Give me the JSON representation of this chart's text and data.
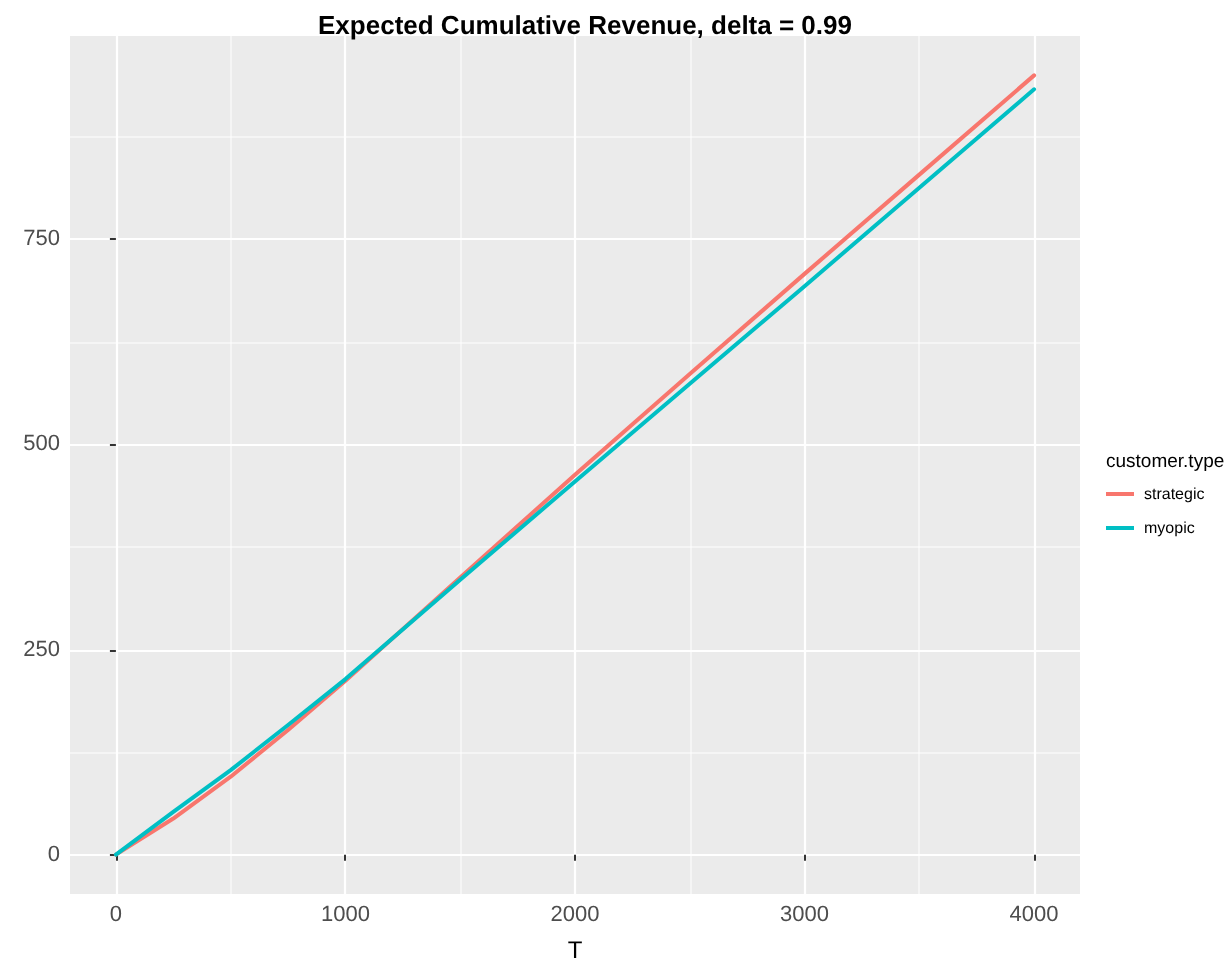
{
  "chart_data": {
    "type": "line",
    "title": "Expected Cumulative Revenue, delta = 0.99",
    "xlabel": "T",
    "legend_title": "customer.type",
    "x": [
      0,
      250,
      500,
      750,
      1000,
      1500,
      2000,
      2500,
      3000,
      3500,
      4000
    ],
    "series": [
      {
        "name": "strategic",
        "color": "#f8766d",
        "values": [
          0,
          44,
          95,
          152,
          212,
          338,
          463,
          586,
          708,
          829,
          950
        ]
      },
      {
        "name": "myopic",
        "color": "#00bfc4",
        "values": [
          0,
          52,
          103,
          158,
          214,
          335,
          455,
          574,
          693,
          813,
          933
        ]
      }
    ],
    "xlim": [
      -200,
      4200
    ],
    "ylim": [
      -48,
      998
    ],
    "xticks": [
      0,
      1000,
      2000,
      3000,
      4000
    ],
    "yticks": [
      0,
      250,
      500,
      750
    ],
    "grid": true,
    "legend": "right",
    "marker": "none",
    "line_style": "solid"
  }
}
